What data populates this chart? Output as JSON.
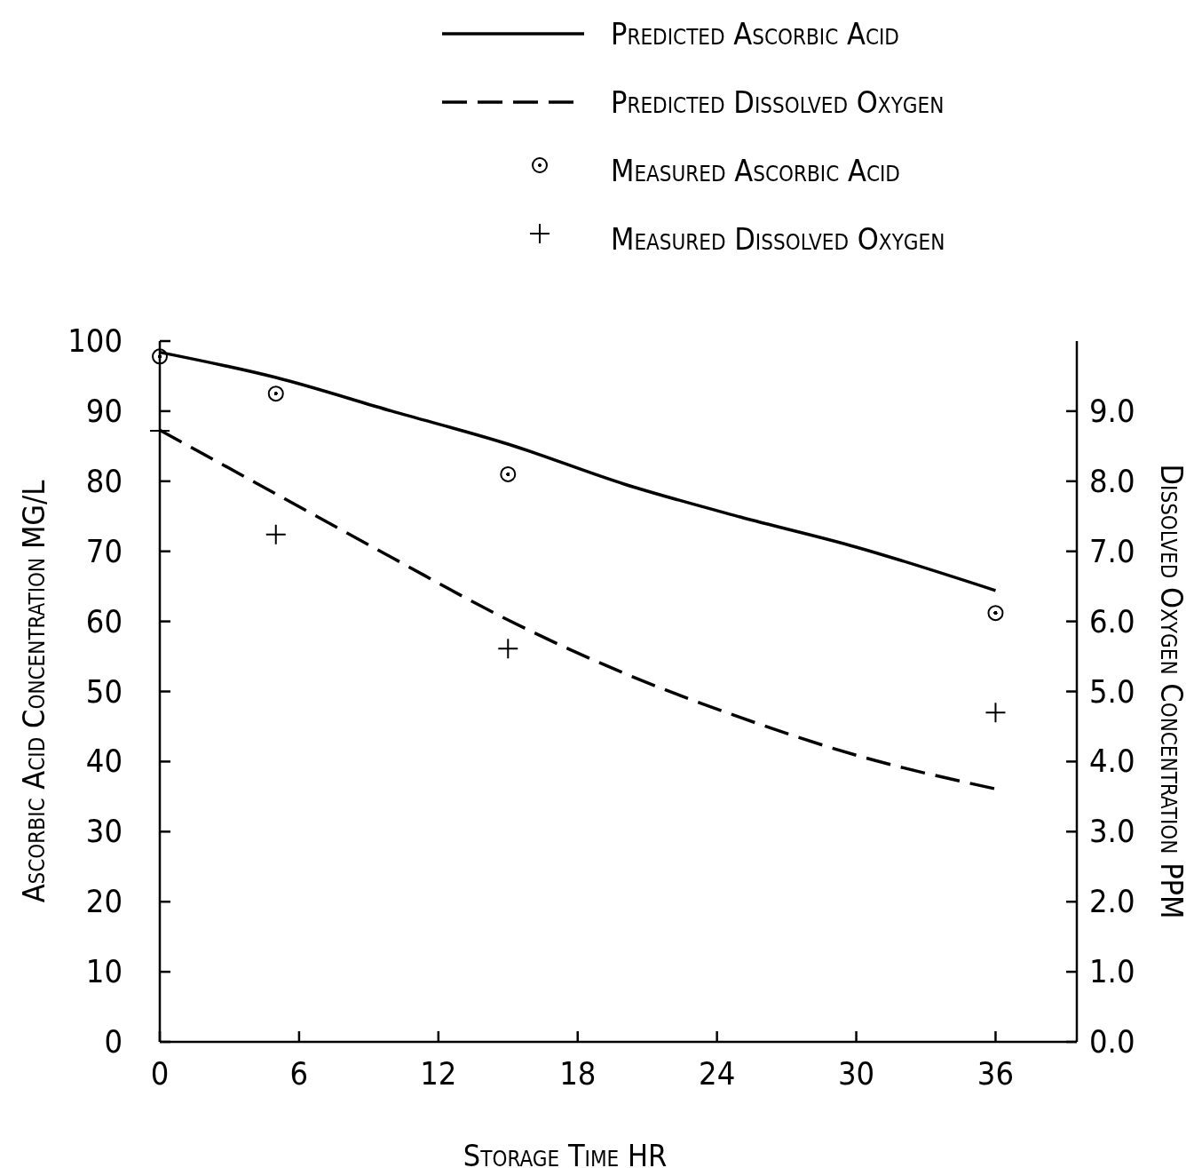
{
  "chart_data": {
    "type": "line",
    "xlabel": "Storage Time HR",
    "ylabel": "Ascorbic Acid Concentration MG/L",
    "y2label": "Dissolved Oxygen Concentration PPM",
    "xlim": [
      0,
      39.5
    ],
    "xticks": [
      0,
      6,
      12,
      18,
      24,
      30,
      36
    ],
    "ylim": [
      0,
      100
    ],
    "yticks": [
      0,
      10,
      20,
      30,
      40,
      50,
      60,
      70,
      80,
      90,
      100
    ],
    "y2lim": [
      0,
      10
    ],
    "y2ticks": [
      {
        "value": 0,
        "label": "0.0"
      },
      {
        "value": 1,
        "label": "1.0"
      },
      {
        "value": 2,
        "label": "2.0"
      },
      {
        "value": 3,
        "label": "3.0"
      },
      {
        "value": 4,
        "label": "4.0"
      },
      {
        "value": 5,
        "label": "5.0"
      },
      {
        "value": 6,
        "label": "6.0"
      },
      {
        "value": 7,
        "label": "7.0"
      },
      {
        "value": 8,
        "label": "8.0"
      },
      {
        "value": 9,
        "label": "9.0"
      }
    ],
    "grid": false,
    "legend": "top",
    "series": [
      {
        "name": "Predicted Ascorbic Acid",
        "color": "#000000",
        "line_style": "solid",
        "marker": "none",
        "x": [
          0,
          5,
          10,
          15,
          20,
          25,
          30,
          36
        ],
        "values": [
          98.4,
          94.8,
          90,
          85.3,
          79.6,
          74.9,
          70.6,
          64.4
        ]
      },
      {
        "name": "Predicted Dissolved Oxygen",
        "axis": "y2",
        "color": "#000000",
        "line_style": "dashed",
        "marker": "none",
        "x": [
          0,
          5,
          10,
          15,
          20,
          25,
          30,
          36
        ],
        "values": [
          8.73,
          7.82,
          6.91,
          6.02,
          5.26,
          4.63,
          4.09,
          3.61
        ]
      },
      {
        "name": "Measured Ascorbic Acid",
        "type": "scatter",
        "color": "#000000",
        "marker": "circle",
        "x": [
          0,
          5,
          15,
          36
        ],
        "values": [
          97.8,
          92.5,
          81,
          61.2
        ]
      },
      {
        "name": "Measured Dissolved Oxygen",
        "type": "scatter",
        "axis": "y2",
        "color": "#000000",
        "marker": "cross",
        "x": [
          0,
          5,
          15,
          36
        ],
        "values": [
          8.72,
          7.24,
          5.61,
          4.7
        ]
      }
    ]
  }
}
